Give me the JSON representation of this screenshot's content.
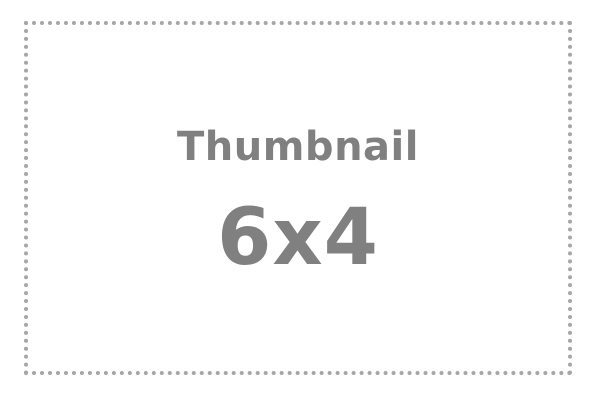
{
  "placeholder": {
    "title": "Thumbnail",
    "dimensions": "6x4",
    "colors": {
      "text": "#808080",
      "border": "#a6a6a6",
      "background": "#ffffff"
    }
  }
}
